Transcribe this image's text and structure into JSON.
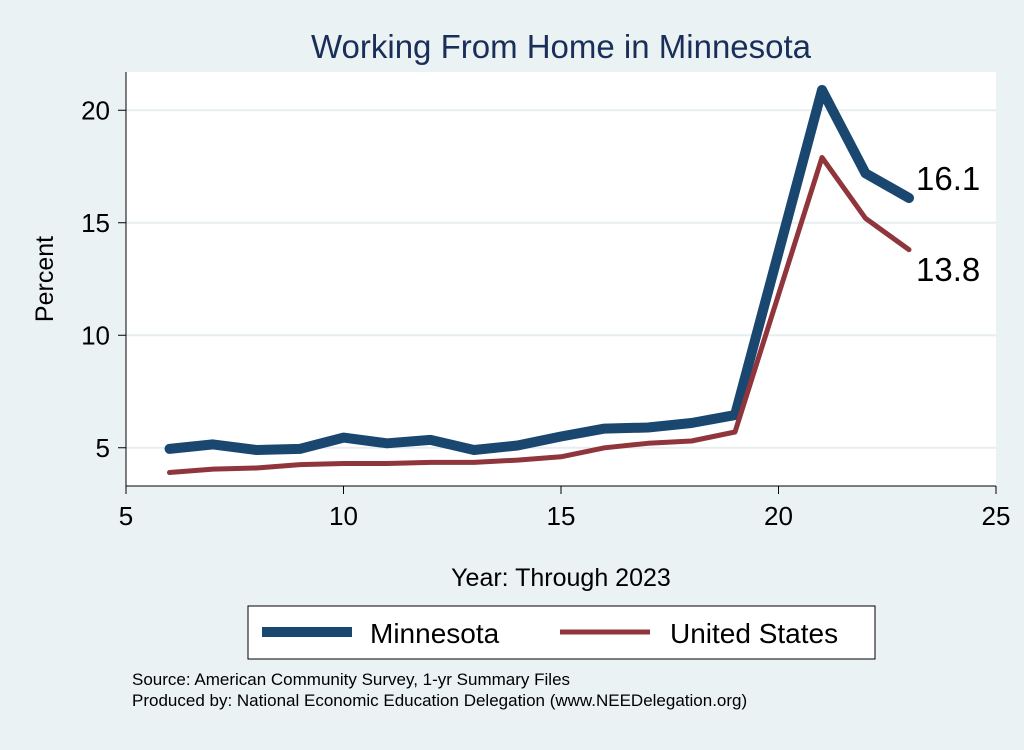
{
  "chart_data": {
    "type": "line",
    "title": "Working From Home in Minnesota",
    "xlabel": "Year: Through 2023",
    "ylabel": "Percent",
    "xlim": [
      5,
      25
    ],
    "ylim": [
      3.3,
      21.7
    ],
    "xticks": [
      5,
      10,
      15,
      20,
      25
    ],
    "yticks": [
      5,
      10,
      15,
      20
    ],
    "grid": "horizontal",
    "legend_position": "bottom",
    "series": [
      {
        "name": "Minnesota",
        "color": "#1a476f",
        "x": [
          6,
          7,
          8,
          9,
          10,
          11,
          12,
          13,
          14,
          15,
          16,
          17,
          18,
          19,
          21,
          22,
          23
        ],
        "values": [
          4.95,
          5.15,
          4.9,
          4.95,
          5.45,
          5.2,
          5.35,
          4.9,
          5.1,
          5.5,
          5.85,
          5.9,
          6.1,
          6.45,
          20.9,
          17.2,
          16.1
        ],
        "end_label": "16.1"
      },
      {
        "name": "United States",
        "color": "#90353b",
        "x": [
          6,
          7,
          8,
          9,
          10,
          11,
          12,
          13,
          14,
          15,
          16,
          17,
          18,
          19,
          21,
          22,
          23
        ],
        "values": [
          3.9,
          4.05,
          4.1,
          4.25,
          4.3,
          4.3,
          4.35,
          4.35,
          4.45,
          4.6,
          5.0,
          5.2,
          5.3,
          5.7,
          17.9,
          15.2,
          13.8
        ],
        "end_label": "13.8"
      }
    ]
  },
  "footer": {
    "source": "Source: American Community Survey, 1-yr Summary Files",
    "producer": "Produced by: National Economic Education Delegation (www.NEEDelegation.org)"
  }
}
